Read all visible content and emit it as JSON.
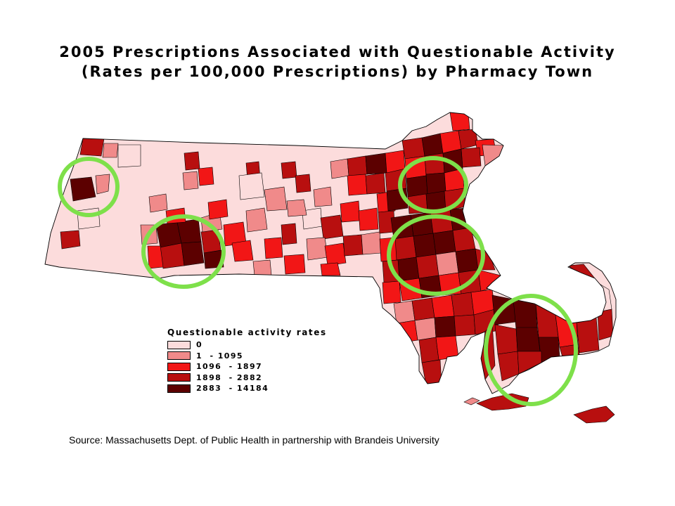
{
  "title": {
    "line1": "2005 Prescriptions Associated with Questionable Activity",
    "line2": "(Rates per 100,000 Prescriptions) by Pharmacy Town"
  },
  "legend": {
    "title": "Questionable activity rates",
    "classes": [
      {
        "label": "0",
        "color": "#fcdcdc"
      },
      {
        "label": "1  - 1095",
        "color": "#f08a8a"
      },
      {
        "label": "1096  - 1897",
        "color": "#f21616"
      },
      {
        "label": "1898  - 2882",
        "color": "#b80f0f"
      },
      {
        "label": "2883  - 14184",
        "color": "#5c0000"
      }
    ]
  },
  "highlight_color": "#7ee04a",
  "outline_color": "#000000",
  "source": "Source: Massachusetts Dept. of Public Health in partnership with Brandeis University"
}
